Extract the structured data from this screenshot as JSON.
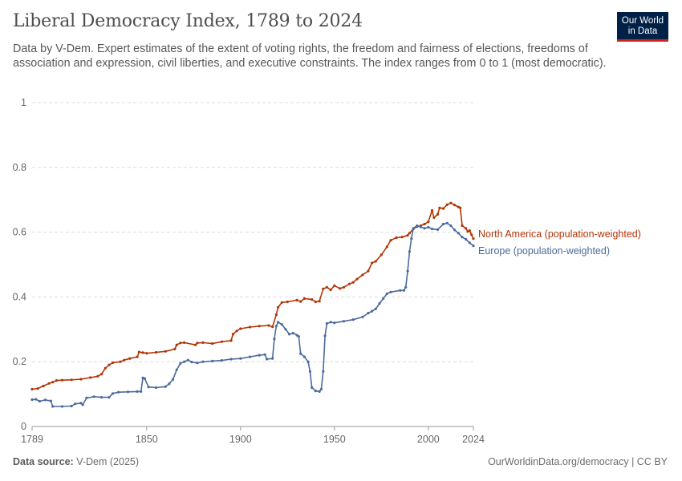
{
  "header": {
    "title": "Liberal Democracy Index, 1789 to 2024",
    "subtitle": "Data by V-Dem. Expert estimates of the extent of voting rights, the freedom and fairness of elections, freedoms of association and expression, civil liberties, and executive constraints. The index ranges from 0 to 1 (most democratic)."
  },
  "logo": {
    "line1": "Our World",
    "line2": "in Data",
    "bg_color": "#002147",
    "accent_color": "#ce261e"
  },
  "footer": {
    "source_label": "Data source:",
    "source_value": "V-Dem (2025)",
    "link": "OurWorldinData.org/democracy | CC BY"
  },
  "chart_data": {
    "type": "line",
    "title": "Liberal Democracy Index, 1789 to 2024",
    "xlabel": "",
    "ylabel": "",
    "xlim": [
      1789,
      2024
    ],
    "ylim": [
      0,
      1
    ],
    "x_ticks": [
      "1789",
      "1850",
      "1900",
      "1950",
      "2000",
      "2024"
    ],
    "y_ticks": [
      "0",
      "0.2",
      "0.4",
      "0.6",
      "0.8",
      "1"
    ],
    "grid": "horizontal dashed",
    "legend": "line-end labels, right",
    "series": [
      {
        "name": "North America (population-weighted)",
        "color": "#b13507",
        "points": [
          [
            1789,
            0.115
          ],
          [
            1792,
            0.117
          ],
          [
            1795,
            0.125
          ],
          [
            1798,
            0.133
          ],
          [
            1800,
            0.137
          ],
          [
            1802,
            0.142
          ],
          [
            1805,
            0.143
          ],
          [
            1810,
            0.144
          ],
          [
            1815,
            0.146
          ],
          [
            1820,
            0.151
          ],
          [
            1824,
            0.155
          ],
          [
            1826,
            0.162
          ],
          [
            1828,
            0.18
          ],
          [
            1830,
            0.19
          ],
          [
            1832,
            0.197
          ],
          [
            1836,
            0.2
          ],
          [
            1838,
            0.205
          ],
          [
            1841,
            0.21
          ],
          [
            1845,
            0.215
          ],
          [
            1846,
            0.23
          ],
          [
            1848,
            0.228
          ],
          [
            1850,
            0.226
          ],
          [
            1855,
            0.229
          ],
          [
            1860,
            0.232
          ],
          [
            1865,
            0.239
          ],
          [
            1866,
            0.252
          ],
          [
            1868,
            0.258
          ],
          [
            1870,
            0.259
          ],
          [
            1876,
            0.252
          ],
          [
            1877,
            0.258
          ],
          [
            1880,
            0.259
          ],
          [
            1885,
            0.256
          ],
          [
            1890,
            0.262
          ],
          [
            1895,
            0.265
          ],
          [
            1896,
            0.285
          ],
          [
            1898,
            0.295
          ],
          [
            1900,
            0.302
          ],
          [
            1905,
            0.307
          ],
          [
            1910,
            0.31
          ],
          [
            1915,
            0.312
          ],
          [
            1917,
            0.308
          ],
          [
            1919,
            0.345
          ],
          [
            1920,
            0.368
          ],
          [
            1922,
            0.383
          ],
          [
            1925,
            0.385
          ],
          [
            1930,
            0.39
          ],
          [
            1932,
            0.386
          ],
          [
            1934,
            0.395
          ],
          [
            1938,
            0.392
          ],
          [
            1940,
            0.385
          ],
          [
            1942,
            0.387
          ],
          [
            1944,
            0.425
          ],
          [
            1946,
            0.43
          ],
          [
            1948,
            0.422
          ],
          [
            1950,
            0.435
          ],
          [
            1953,
            0.426
          ],
          [
            1955,
            0.43
          ],
          [
            1958,
            0.44
          ],
          [
            1960,
            0.445
          ],
          [
            1962,
            0.455
          ],
          [
            1965,
            0.468
          ],
          [
            1968,
            0.48
          ],
          [
            1970,
            0.505
          ],
          [
            1972,
            0.51
          ],
          [
            1975,
            0.53
          ],
          [
            1978,
            0.555
          ],
          [
            1980,
            0.575
          ],
          [
            1983,
            0.583
          ],
          [
            1986,
            0.585
          ],
          [
            1989,
            0.59
          ],
          [
            1990,
            0.597
          ],
          [
            1992,
            0.61
          ],
          [
            1994,
            0.617
          ],
          [
            1996,
            0.62
          ],
          [
            1998,
            0.625
          ],
          [
            2000,
            0.632
          ],
          [
            2002,
            0.667
          ],
          [
            2003,
            0.645
          ],
          [
            2005,
            0.655
          ],
          [
            2006,
            0.675
          ],
          [
            2008,
            0.673
          ],
          [
            2010,
            0.685
          ],
          [
            2012,
            0.69
          ],
          [
            2014,
            0.684
          ],
          [
            2016,
            0.678
          ],
          [
            2017,
            0.675
          ],
          [
            2018,
            0.62
          ],
          [
            2020,
            0.612
          ],
          [
            2021,
            0.602
          ],
          [
            2022,
            0.605
          ],
          [
            2023,
            0.592
          ],
          [
            2024,
            0.58
          ]
        ]
      },
      {
        "name": "Europe (population-weighted)",
        "color": "#4c6a9c",
        "points": [
          [
            1789,
            0.083
          ],
          [
            1791,
            0.084
          ],
          [
            1793,
            0.078
          ],
          [
            1796,
            0.082
          ],
          [
            1799,
            0.079
          ],
          [
            1800,
            0.062
          ],
          [
            1805,
            0.062
          ],
          [
            1810,
            0.063
          ],
          [
            1812,
            0.07
          ],
          [
            1815,
            0.072
          ],
          [
            1816,
            0.067
          ],
          [
            1818,
            0.088
          ],
          [
            1822,
            0.092
          ],
          [
            1826,
            0.09
          ],
          [
            1830,
            0.09
          ],
          [
            1832,
            0.102
          ],
          [
            1835,
            0.106
          ],
          [
            1840,
            0.107
          ],
          [
            1845,
            0.108
          ],
          [
            1847,
            0.108
          ],
          [
            1848,
            0.15
          ],
          [
            1849,
            0.148
          ],
          [
            1851,
            0.122
          ],
          [
            1855,
            0.12
          ],
          [
            1860,
            0.123
          ],
          [
            1862,
            0.132
          ],
          [
            1864,
            0.145
          ],
          [
            1866,
            0.175
          ],
          [
            1868,
            0.195
          ],
          [
            1870,
            0.2
          ],
          [
            1872,
            0.205
          ],
          [
            1874,
            0.199
          ],
          [
            1877,
            0.196
          ],
          [
            1880,
            0.2
          ],
          [
            1885,
            0.202
          ],
          [
            1890,
            0.204
          ],
          [
            1895,
            0.208
          ],
          [
            1900,
            0.21
          ],
          [
            1905,
            0.215
          ],
          [
            1910,
            0.22
          ],
          [
            1913,
            0.222
          ],
          [
            1914,
            0.208
          ],
          [
            1917,
            0.21
          ],
          [
            1918,
            0.27
          ],
          [
            1919,
            0.31
          ],
          [
            1920,
            0.322
          ],
          [
            1922,
            0.315
          ],
          [
            1924,
            0.3
          ],
          [
            1926,
            0.285
          ],
          [
            1928,
            0.288
          ],
          [
            1930,
            0.282
          ],
          [
            1931,
            0.278
          ],
          [
            1932,
            0.225
          ],
          [
            1934,
            0.215
          ],
          [
            1936,
            0.2
          ],
          [
            1937,
            0.17
          ],
          [
            1938,
            0.12
          ],
          [
            1940,
            0.11
          ],
          [
            1942,
            0.108
          ],
          [
            1943,
            0.115
          ],
          [
            1944,
            0.17
          ],
          [
            1945,
            0.28
          ],
          [
            1946,
            0.318
          ],
          [
            1948,
            0.322
          ],
          [
            1950,
            0.32
          ],
          [
            1955,
            0.325
          ],
          [
            1960,
            0.33
          ],
          [
            1965,
            0.338
          ],
          [
            1968,
            0.35
          ],
          [
            1970,
            0.356
          ],
          [
            1972,
            0.363
          ],
          [
            1974,
            0.38
          ],
          [
            1976,
            0.395
          ],
          [
            1978,
            0.41
          ],
          [
            1980,
            0.415
          ],
          [
            1985,
            0.42
          ],
          [
            1987,
            0.42
          ],
          [
            1988,
            0.43
          ],
          [
            1989,
            0.48
          ],
          [
            1990,
            0.54
          ],
          [
            1991,
            0.58
          ],
          [
            1992,
            0.612
          ],
          [
            1994,
            0.62
          ],
          [
            1996,
            0.616
          ],
          [
            1998,
            0.612
          ],
          [
            2000,
            0.615
          ],
          [
            2002,
            0.61
          ],
          [
            2005,
            0.608
          ],
          [
            2008,
            0.625
          ],
          [
            2010,
            0.628
          ],
          [
            2012,
            0.62
          ],
          [
            2014,
            0.607
          ],
          [
            2016,
            0.597
          ],
          [
            2018,
            0.585
          ],
          [
            2020,
            0.578
          ],
          [
            2022,
            0.567
          ],
          [
            2024,
            0.558
          ]
        ]
      }
    ]
  }
}
